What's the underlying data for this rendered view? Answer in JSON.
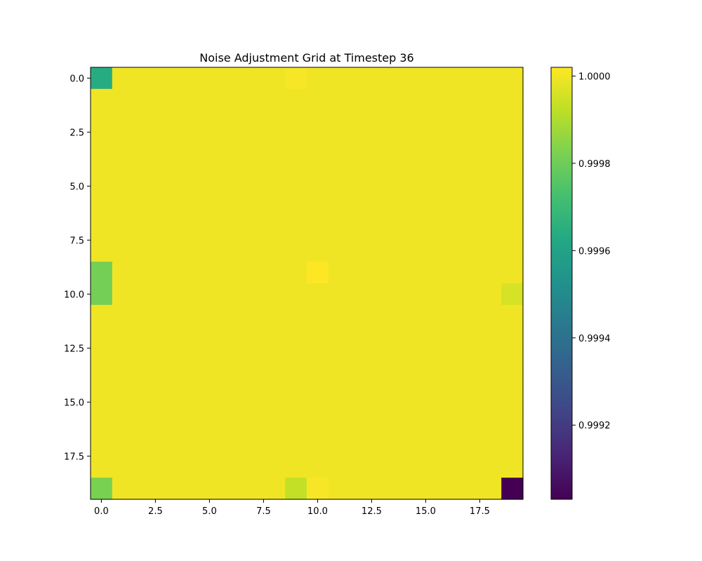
{
  "chart_data": {
    "type": "heatmap",
    "title": "Noise Adjustment Grid at Timestep 36",
    "xlabel": "",
    "ylabel": "",
    "rows": 20,
    "cols": 20,
    "colormap": "viridis",
    "vmin": 0.99903,
    "vmax": 1.00002,
    "default_value": 1.0,
    "xlim": [
      -0.5,
      19.5
    ],
    "ylim": [
      19.5,
      -0.5
    ],
    "x_ticks": [
      0.0,
      2.5,
      5.0,
      7.5,
      10.0,
      12.5,
      15.0,
      17.5
    ],
    "x_tick_labels": [
      "0.0",
      "2.5",
      "5.0",
      "7.5",
      "10.0",
      "12.5",
      "15.0",
      "17.5"
    ],
    "y_ticks": [
      0.0,
      2.5,
      5.0,
      7.5,
      10.0,
      12.5,
      15.0,
      17.5
    ],
    "y_tick_labels": [
      "0.0",
      "2.5",
      "5.0",
      "7.5",
      "10.0",
      "12.5",
      "15.0",
      "17.5"
    ],
    "colorbar_ticks": [
      0.9992,
      0.9994,
      0.9996,
      0.9998,
      1.0
    ],
    "colorbar_tick_labels": [
      "0.9992",
      "0.9994",
      "0.9996",
      "0.9998",
      "1.0000"
    ],
    "grid": false,
    "cells": [
      {
        "row": 0,
        "col": 0,
        "value": 0.99964
      },
      {
        "row": 0,
        "col": 9,
        "value": 1.00001
      },
      {
        "row": 9,
        "col": 0,
        "value": 0.99981
      },
      {
        "row": 9,
        "col": 10,
        "value": 1.00002
      },
      {
        "row": 10,
        "col": 0,
        "value": 0.99981
      },
      {
        "row": 10,
        "col": 19,
        "value": 0.99996
      },
      {
        "row": 19,
        "col": 0,
        "value": 0.99982
      },
      {
        "row": 19,
        "col": 9,
        "value": 0.99993
      },
      {
        "row": 19,
        "col": 10,
        "value": 1.00001
      },
      {
        "row": 19,
        "col": 19,
        "value": 0.99903
      }
    ]
  }
}
